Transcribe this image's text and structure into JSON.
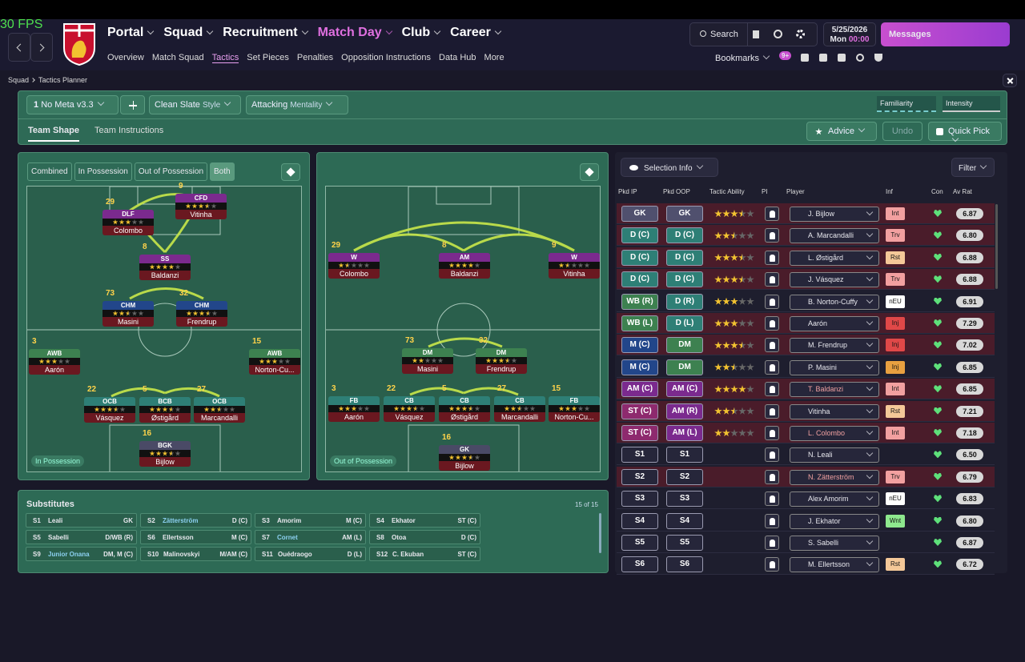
{
  "fps": "30 FPS",
  "nav": {
    "main": [
      "Portal",
      "Squad",
      "Recruitment",
      "Match Day",
      "Club",
      "Career"
    ],
    "sub": [
      "Overview",
      "Match Squad",
      "Tactics",
      "Set Pieces",
      "Penalties",
      "Opposition Instructions",
      "Data Hub",
      "More"
    ]
  },
  "search": "Search",
  "date": {
    "date": "5/25/2026",
    "day": "Mon",
    "time": "00:00"
  },
  "messages": "Messages",
  "bookmarks": {
    "label": "Bookmarks",
    "badge": "9+"
  },
  "breadcrumb": [
    "Squad",
    "Tactics Planner"
  ],
  "toolbar": {
    "tactic_number": "1",
    "tactic": "No Meta v3.3",
    "style_value": "Clean Slate",
    "style_label": "Style",
    "mentality_value": "Attacking",
    "mentality_label": "Mentality",
    "familiarity": "Familiarity",
    "intensity": "Intensity"
  },
  "tabs": [
    "Team Shape",
    "Team Instructions"
  ],
  "actions": {
    "advice": "Advice",
    "undo": "Undo",
    "quick_pick": "Quick Pick"
  },
  "pitch_modes": [
    "Combined",
    "In Possession",
    "Out of Possession",
    "Both"
  ],
  "in_possession": {
    "label": "In Possession",
    "players": [
      {
        "number": "29",
        "role": "DLF",
        "name": "Colombo",
        "stars": 3,
        "color": "#7b2a8e"
      },
      {
        "number": "9",
        "role": "CFD",
        "name": "Vitinha",
        "stars": 3.5,
        "color": "#7b2a8e"
      },
      {
        "number": "8",
        "role": "SS",
        "name": "Baldanzi",
        "stars": 4,
        "color": "#7b2a8e"
      },
      {
        "number": "73",
        "role": "CHM",
        "name": "Masini",
        "stars": 2.5,
        "color": "#22468a"
      },
      {
        "number": "32",
        "role": "CHM",
        "name": "Frendrup",
        "stars": 3.5,
        "color": "#22468a"
      },
      {
        "number": "3",
        "role": "AWB",
        "name": "Aarón",
        "stars": 3,
        "color": "#3d8150"
      },
      {
        "number": "15",
        "role": "AWB",
        "name": "Norton-Cu...",
        "stars": 3,
        "color": "#3d8150"
      },
      {
        "number": "22",
        "role": "OCB",
        "name": "Vásquez",
        "stars": 3.5,
        "color": "#2e7f76"
      },
      {
        "number": "5",
        "role": "BCB",
        "name": "Østigård",
        "stars": 3.5,
        "color": "#2e7f76"
      },
      {
        "number": "27",
        "role": "OCB",
        "name": "Marcandalli",
        "stars": 2.5,
        "color": "#2e7f76"
      },
      {
        "number": "16",
        "role": "BGK",
        "name": "Bijlow",
        "stars": 3.5,
        "color": "#4a4a66"
      }
    ]
  },
  "out_of_possession": {
    "label": "Out of Possession",
    "players": [
      {
        "number": "29",
        "role": "W",
        "name": "Colombo",
        "stars": 1.5,
        "color": "#7b2a8e"
      },
      {
        "number": "8",
        "role": "AM",
        "name": "Baldanzi",
        "stars": 4,
        "color": "#7b2a8e"
      },
      {
        "number": "9",
        "role": "W",
        "name": "Vitinha",
        "stars": 1.5,
        "color": "#7b2a8e"
      },
      {
        "number": "73",
        "role": "DM",
        "name": "Masini",
        "stars": 2,
        "color": "#3d8150"
      },
      {
        "number": "32",
        "role": "DM",
        "name": "Frendrup",
        "stars": 3.5,
        "color": "#3d8150"
      },
      {
        "number": "3",
        "role": "FB",
        "name": "Aarón",
        "stars": 3,
        "color": "#2e7f76"
      },
      {
        "number": "22",
        "role": "CB",
        "name": "Vásquez",
        "stars": 3.5,
        "color": "#2e7f76"
      },
      {
        "number": "5",
        "role": "CB",
        "name": "Østigård",
        "stars": 3.5,
        "color": "#2e7f76"
      },
      {
        "number": "27",
        "role": "CB",
        "name": "Marcandalli",
        "stars": 2.5,
        "color": "#2e7f76"
      },
      {
        "number": "15",
        "role": "FB",
        "name": "Norton-Cu...",
        "stars": 3,
        "color": "#2e7f76"
      },
      {
        "number": "16",
        "role": "GK",
        "name": "Bijlow",
        "stars": 3.5,
        "color": "#4a4a66"
      }
    ]
  },
  "substitutes": {
    "title": "Substitutes",
    "count": "15 of 15",
    "items": [
      {
        "slot": "S1",
        "name": "Leali",
        "position": "GK"
      },
      {
        "slot": "S2",
        "name": "Zätterström",
        "position": "D (C)"
      },
      {
        "slot": "S3",
        "name": "Amorim",
        "position": "M (C)"
      },
      {
        "slot": "S4",
        "name": "Ekhator",
        "position": "ST (C)"
      },
      {
        "slot": "S5",
        "name": "Sabelli",
        "position": "D/WB (R)"
      },
      {
        "slot": "S6",
        "name": "Ellertsson",
        "position": "M (C)"
      },
      {
        "slot": "S7",
        "name": "Cornet",
        "position": "AM (L)"
      },
      {
        "slot": "S8",
        "name": "Otoa",
        "position": "D (C)"
      },
      {
        "slot": "S9",
        "name": "Junior Onana",
        "position": "DM, M (C)"
      },
      {
        "slot": "S10",
        "name": "Malinovskyi",
        "position": "M/AM (C)"
      },
      {
        "slot": "S11",
        "name": "Ouédraogo",
        "position": "D (L)"
      },
      {
        "slot": "S12",
        "name": "C. Ekuban",
        "position": "ST (C)"
      }
    ]
  },
  "selection": {
    "title": "Selection Info",
    "filter": "Filter",
    "columns": [
      "Pkd IP",
      "Pkd OOP",
      "Tactic Ability",
      "PI",
      "Player",
      "Inf",
      "Con",
      "Av Rat"
    ],
    "rows": [
      {
        "ip": "GK",
        "oop": "GK",
        "stars": 3.5,
        "player": "J. Bijlow",
        "inf": "Int",
        "rating": "6.87",
        "ip_color": "#50506e",
        "oop_color": "#50506e",
        "inf_color": "#f2a0a0",
        "row_color": "#4a1c2a"
      },
      {
        "ip": "D (C)",
        "oop": "D (C)",
        "stars": 2.5,
        "player": "A. Marcandalli",
        "inf": "Trv",
        "rating": "6.80",
        "ip_color": "#2e7f76",
        "oop_color": "#2e7f76",
        "inf_color": "#f2a0a0",
        "row_color": "#4a1c2a"
      },
      {
        "ip": "D (C)",
        "oop": "D (C)",
        "stars": 3.5,
        "player": "L. Østigård",
        "inf": "Rst",
        "rating": "6.88",
        "ip_color": "#2e7f76",
        "oop_color": "#2e7f76",
        "inf_color": "#f4c898",
        "row_color": "#4a1c2a"
      },
      {
        "ip": "D (C)",
        "oop": "D (C)",
        "stars": 3.5,
        "player": "J. Vásquez",
        "inf": "Trv",
        "rating": "6.88",
        "ip_color": "#2e7f76",
        "oop_color": "#2e7f76",
        "inf_color": "#f2a0a0",
        "row_color": "#4a1c2a"
      },
      {
        "ip": "WB (R)",
        "oop": "D (R)",
        "stars": 3,
        "player": "B. Norton-Cuffy",
        "inf": "nEU",
        "rating": "6.91",
        "ip_color": "#3d8150",
        "oop_color": "#2e7f76",
        "inf_color": "#ffffff",
        "row_color": "#1e1e2e"
      },
      {
        "ip": "WB (L)",
        "oop": "D (L)",
        "stars": 3,
        "player": "Aarón",
        "inf": "Inj",
        "rating": "7.29",
        "ip_color": "#3d8150",
        "oop_color": "#2e7f76",
        "inf_color": "#e04848",
        "row_color": "#4a1c2a"
      },
      {
        "ip": "M (C)",
        "oop": "DM",
        "stars": 3.5,
        "player": "M. Frendrup",
        "inf": "Inj",
        "rating": "7.02",
        "ip_color": "#22468a",
        "oop_color": "#3d8150",
        "inf_color": "#e04848",
        "row_color": "#4a1c2a"
      },
      {
        "ip": "M (C)",
        "oop": "DM",
        "stars": 2.5,
        "player": "P. Masini",
        "inf": "Inj",
        "rating": "6.85",
        "ip_color": "#22468a",
        "oop_color": "#3d8150",
        "inf_color": "#e8a040",
        "row_color": "#1e1e2e"
      },
      {
        "ip": "AM (C)",
        "oop": "AM (C)",
        "stars": 4,
        "player": "T. Baldanzi",
        "inf": "Int",
        "rating": "6.85",
        "ip_color": "#7b2a8e",
        "oop_color": "#7b2a8e",
        "inf_color": "#f2a0a0",
        "row_color": "#4a1c2a"
      },
      {
        "ip": "ST (C)",
        "oop": "AM (R)",
        "stars": 2.5,
        "player": "Vitinha",
        "inf": "Rst",
        "rating": "7.21",
        "ip_color": "#8e2a6e",
        "oop_color": "#7b2a8e",
        "inf_color": "#f4c898",
        "row_color": "#4a1c2a"
      },
      {
        "ip": "ST (C)",
        "oop": "AM (L)",
        "stars": 2,
        "player": "L. Colombo",
        "inf": "Int",
        "rating": "7.18",
        "ip_color": "#8e2a6e",
        "oop_color": "#7b2a8e",
        "inf_color": "#f2a0a0",
        "row_color": "#4a1c2a"
      },
      {
        "ip": "S1",
        "oop": "S1",
        "stars": 0,
        "player": "N. Leali",
        "inf": null,
        "rating": "6.50",
        "ip_color": "#26263a",
        "oop_color": "#26263a",
        "inf_color": null,
        "row_color": "#1e1e2e"
      },
      {
        "ip": "S2",
        "oop": "S2",
        "stars": 0,
        "player": "N. Zätterström",
        "inf": "Trv",
        "rating": "6.79",
        "ip_color": "#26263a",
        "oop_color": "#26263a",
        "inf_color": "#f2a0a0",
        "row_color": "#4a1c2a"
      },
      {
        "ip": "S3",
        "oop": "S3",
        "stars": 0,
        "player": "Alex Amorim",
        "inf": "nEU",
        "rating": "6.83",
        "ip_color": "#26263a",
        "oop_color": "#26263a",
        "inf_color": "#ffffff",
        "row_color": "#1e1e2e"
      },
      {
        "ip": "S4",
        "oop": "S4",
        "stars": 0,
        "player": "J. Ekhator",
        "inf": "Wnt",
        "rating": "6.80",
        "ip_color": "#26263a",
        "oop_color": "#26263a",
        "inf_color": "#8ee88e",
        "row_color": "#1e1e2e"
      },
      {
        "ip": "S5",
        "oop": "S5",
        "stars": 0,
        "player": "S. Sabelli",
        "inf": null,
        "rating": "6.87",
        "ip_color": "#26263a",
        "oop_color": "#26263a",
        "inf_color": null,
        "row_color": "#1e1e2e"
      },
      {
        "ip": "S6",
        "oop": "S6",
        "stars": 0,
        "player": "M. Ellertsson",
        "inf": "Rst",
        "rating": "6.72",
        "ip_color": "#26263a",
        "oop_color": "#26263a",
        "inf_color": "#f4c898",
        "row_color": "#1e1e2e"
      }
    ]
  }
}
